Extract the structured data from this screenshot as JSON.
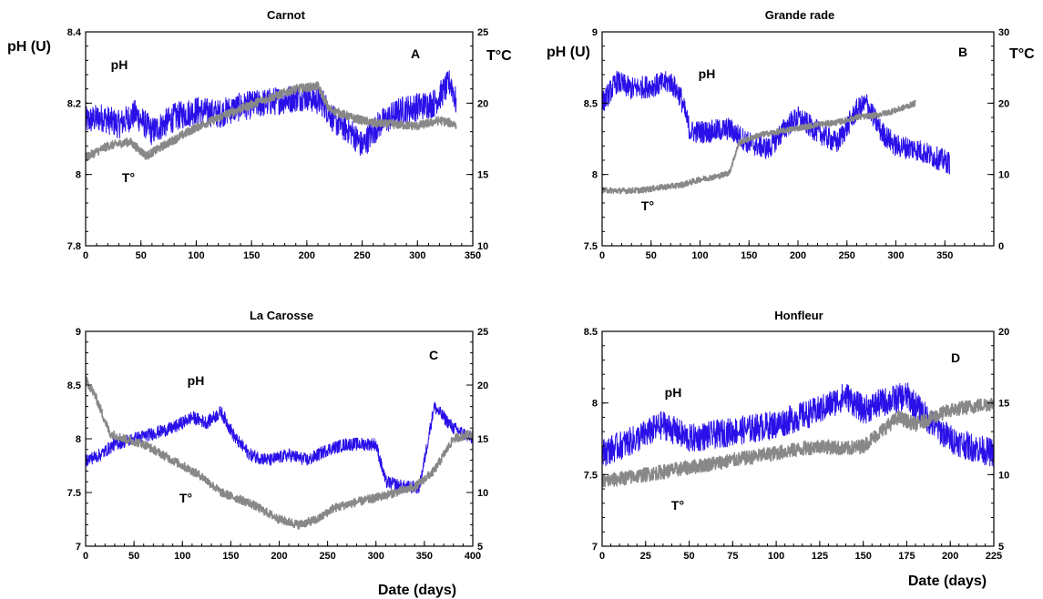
{
  "colors": {
    "ph": "#2a10e8",
    "temperature": "#888888"
  },
  "shared": {
    "xlabel": "Date (days)"
  },
  "chart_data": [
    {
      "type": "line",
      "title": "Carnot",
      "panel": "A",
      "ylabel_left": "pH (U)",
      "ylabel_right": "T°C",
      "xlim": [
        0,
        350
      ],
      "ylim_left": [
        7.8,
        8.4
      ],
      "ylim_right": [
        10,
        25
      ],
      "xticks": [
        0,
        50,
        100,
        150,
        200,
        250,
        300,
        350
      ],
      "yticks_left": [
        "7.8",
        "8",
        "8.2",
        "8.4"
      ],
      "yticks_right": [
        "10",
        "15",
        "20",
        "25"
      ],
      "annotations": [
        {
          "text": "pH"
        },
        {
          "text": "T°"
        }
      ],
      "series": [
        {
          "name": "pH",
          "axis": "left",
          "noise": 0.04,
          "x": [
            0,
            15,
            30,
            45,
            60,
            80,
            100,
            120,
            140,
            160,
            180,
            200,
            215,
            225,
            240,
            250,
            265,
            285,
            300,
            315,
            325,
            330,
            335
          ],
          "y": [
            8.15,
            8.16,
            8.14,
            8.17,
            8.12,
            8.16,
            8.18,
            8.17,
            8.19,
            8.2,
            8.21,
            8.22,
            8.2,
            8.15,
            8.12,
            8.08,
            8.14,
            8.18,
            8.19,
            8.2,
            8.24,
            8.26,
            8.2
          ]
        },
        {
          "name": "T°",
          "axis": "right",
          "noise": 0.3,
          "x": [
            0,
            20,
            40,
            55,
            70,
            100,
            130,
            160,
            190,
            210,
            220,
            240,
            260,
            280,
            300,
            320,
            335
          ],
          "y": [
            16.2,
            17.0,
            17.3,
            16.3,
            17.0,
            18.3,
            19.3,
            20.2,
            21.0,
            21.2,
            19.6,
            19.0,
            18.6,
            18.5,
            18.4,
            18.8,
            18.5
          ]
        }
      ]
    },
    {
      "type": "line",
      "title": "Grande rade",
      "panel": "B",
      "ylabel_left": "pH (U)",
      "ylabel_right": "T°C",
      "xlim": [
        0,
        400
      ],
      "ylim_left": [
        7.5,
        9
      ],
      "ylim_right": [
        0,
        30
      ],
      "xticks": [
        0,
        50,
        100,
        150,
        200,
        250,
        300,
        350
      ],
      "yticks_left": [
        "7.5",
        "8",
        "8.5",
        "9"
      ],
      "yticks_right": [
        "0",
        "10",
        "20",
        "30"
      ],
      "annotations": [
        {
          "text": "pH"
        },
        {
          "text": "T°"
        }
      ],
      "series": [
        {
          "name": "pH",
          "axis": "left",
          "noise": 0.08,
          "x": [
            0,
            15,
            30,
            50,
            70,
            80,
            90,
            110,
            130,
            150,
            170,
            190,
            200,
            220,
            240,
            260,
            270,
            285,
            300,
            320,
            340,
            355
          ],
          "y": [
            8.5,
            8.65,
            8.6,
            8.62,
            8.65,
            8.55,
            8.3,
            8.3,
            8.32,
            8.22,
            8.18,
            8.35,
            8.4,
            8.3,
            8.22,
            8.45,
            8.5,
            8.3,
            8.2,
            8.18,
            8.12,
            8.08
          ]
        },
        {
          "name": "T°",
          "axis": "right",
          "noise": 0.4,
          "x": [
            0,
            20,
            40,
            60,
            80,
            100,
            120,
            130,
            140,
            160,
            180,
            200,
            220,
            240,
            260,
            280,
            300,
            320
          ],
          "y": [
            7.8,
            7.7,
            7.8,
            8.2,
            8.5,
            9.3,
            9.8,
            10.3,
            14.5,
            15.5,
            16.0,
            16.5,
            17.0,
            17.3,
            18.0,
            18.3,
            19.0,
            20.0
          ]
        }
      ]
    },
    {
      "type": "line",
      "title": "La Carosse",
      "panel": "C",
      "ylabel_left": "",
      "ylabel_right": "",
      "xlim": [
        0,
        400
      ],
      "ylim_left": [
        7,
        9
      ],
      "ylim_right": [
        5,
        25
      ],
      "xticks": [
        0,
        50,
        100,
        150,
        200,
        250,
        300,
        350,
        400
      ],
      "yticks_left": [
        "7",
        "7.5",
        "8",
        "8.5",
        "9"
      ],
      "yticks_right": [
        "5",
        "10",
        "15",
        "20",
        "25"
      ],
      "annotations": [
        {
          "text": "pH"
        },
        {
          "text": "T°"
        }
      ],
      "series": [
        {
          "name": "pH",
          "axis": "left",
          "noise": 0.06,
          "x": [
            0,
            15,
            30,
            50,
            70,
            90,
            110,
            125,
            140,
            155,
            170,
            190,
            210,
            230,
            250,
            270,
            290,
            300,
            310,
            330,
            345,
            360,
            380,
            400
          ],
          "y": [
            7.8,
            7.85,
            7.95,
            8.0,
            8.05,
            8.1,
            8.2,
            8.15,
            8.25,
            8.0,
            7.85,
            7.8,
            7.85,
            7.8,
            7.9,
            7.95,
            7.95,
            7.95,
            7.6,
            7.55,
            7.55,
            8.3,
            8.1,
            8.0
          ]
        },
        {
          "name": "T°",
          "axis": "right",
          "noise": 0.4,
          "x": [
            0,
            10,
            25,
            40,
            60,
            80,
            100,
            120,
            140,
            170,
            200,
            220,
            240,
            255,
            275,
            300,
            320,
            340,
            360,
            380,
            400
          ],
          "y": [
            20.5,
            19.0,
            15.5,
            15.0,
            14.5,
            13.5,
            12.5,
            11.5,
            10.0,
            9.0,
            7.5,
            7.0,
            7.5,
            8.5,
            9.0,
            9.5,
            10.0,
            10.5,
            12.0,
            15.0,
            15.5
          ]
        }
      ]
    },
    {
      "type": "line",
      "title": "Honfleur",
      "panel": "D",
      "ylabel_left": "",
      "ylabel_right": "",
      "xlim": [
        0,
        225
      ],
      "ylim_left": [
        7,
        8.5
      ],
      "ylim_right": [
        5,
        20
      ],
      "xticks": [
        0,
        25,
        50,
        75,
        100,
        125,
        150,
        175,
        200,
        225
      ],
      "yticks_left": [
        "7",
        "7.5",
        "8",
        "8.5"
      ],
      "yticks_right": [
        "5",
        "10",
        "15",
        "20"
      ],
      "annotations": [
        {
          "text": "pH"
        },
        {
          "text": "T°"
        }
      ],
      "series": [
        {
          "name": "pH",
          "axis": "left",
          "noise": 0.1,
          "x": [
            0,
            20,
            35,
            50,
            75,
            100,
            125,
            140,
            150,
            160,
            175,
            190,
            200,
            210,
            225
          ],
          "y": [
            7.65,
            7.75,
            7.85,
            7.75,
            7.8,
            7.85,
            7.95,
            8.05,
            7.95,
            8.0,
            8.05,
            7.85,
            7.75,
            7.7,
            7.65
          ]
        },
        {
          "name": "T°",
          "axis": "right",
          "noise": 0.5,
          "x": [
            0,
            25,
            50,
            75,
            100,
            125,
            140,
            150,
            160,
            170,
            180,
            190,
            200,
            225
          ],
          "y": [
            9.5,
            10.0,
            10.5,
            11.0,
            11.5,
            12.0,
            11.8,
            12.0,
            13.0,
            14.0,
            13.5,
            14.0,
            14.5,
            15.0
          ]
        }
      ]
    }
  ]
}
